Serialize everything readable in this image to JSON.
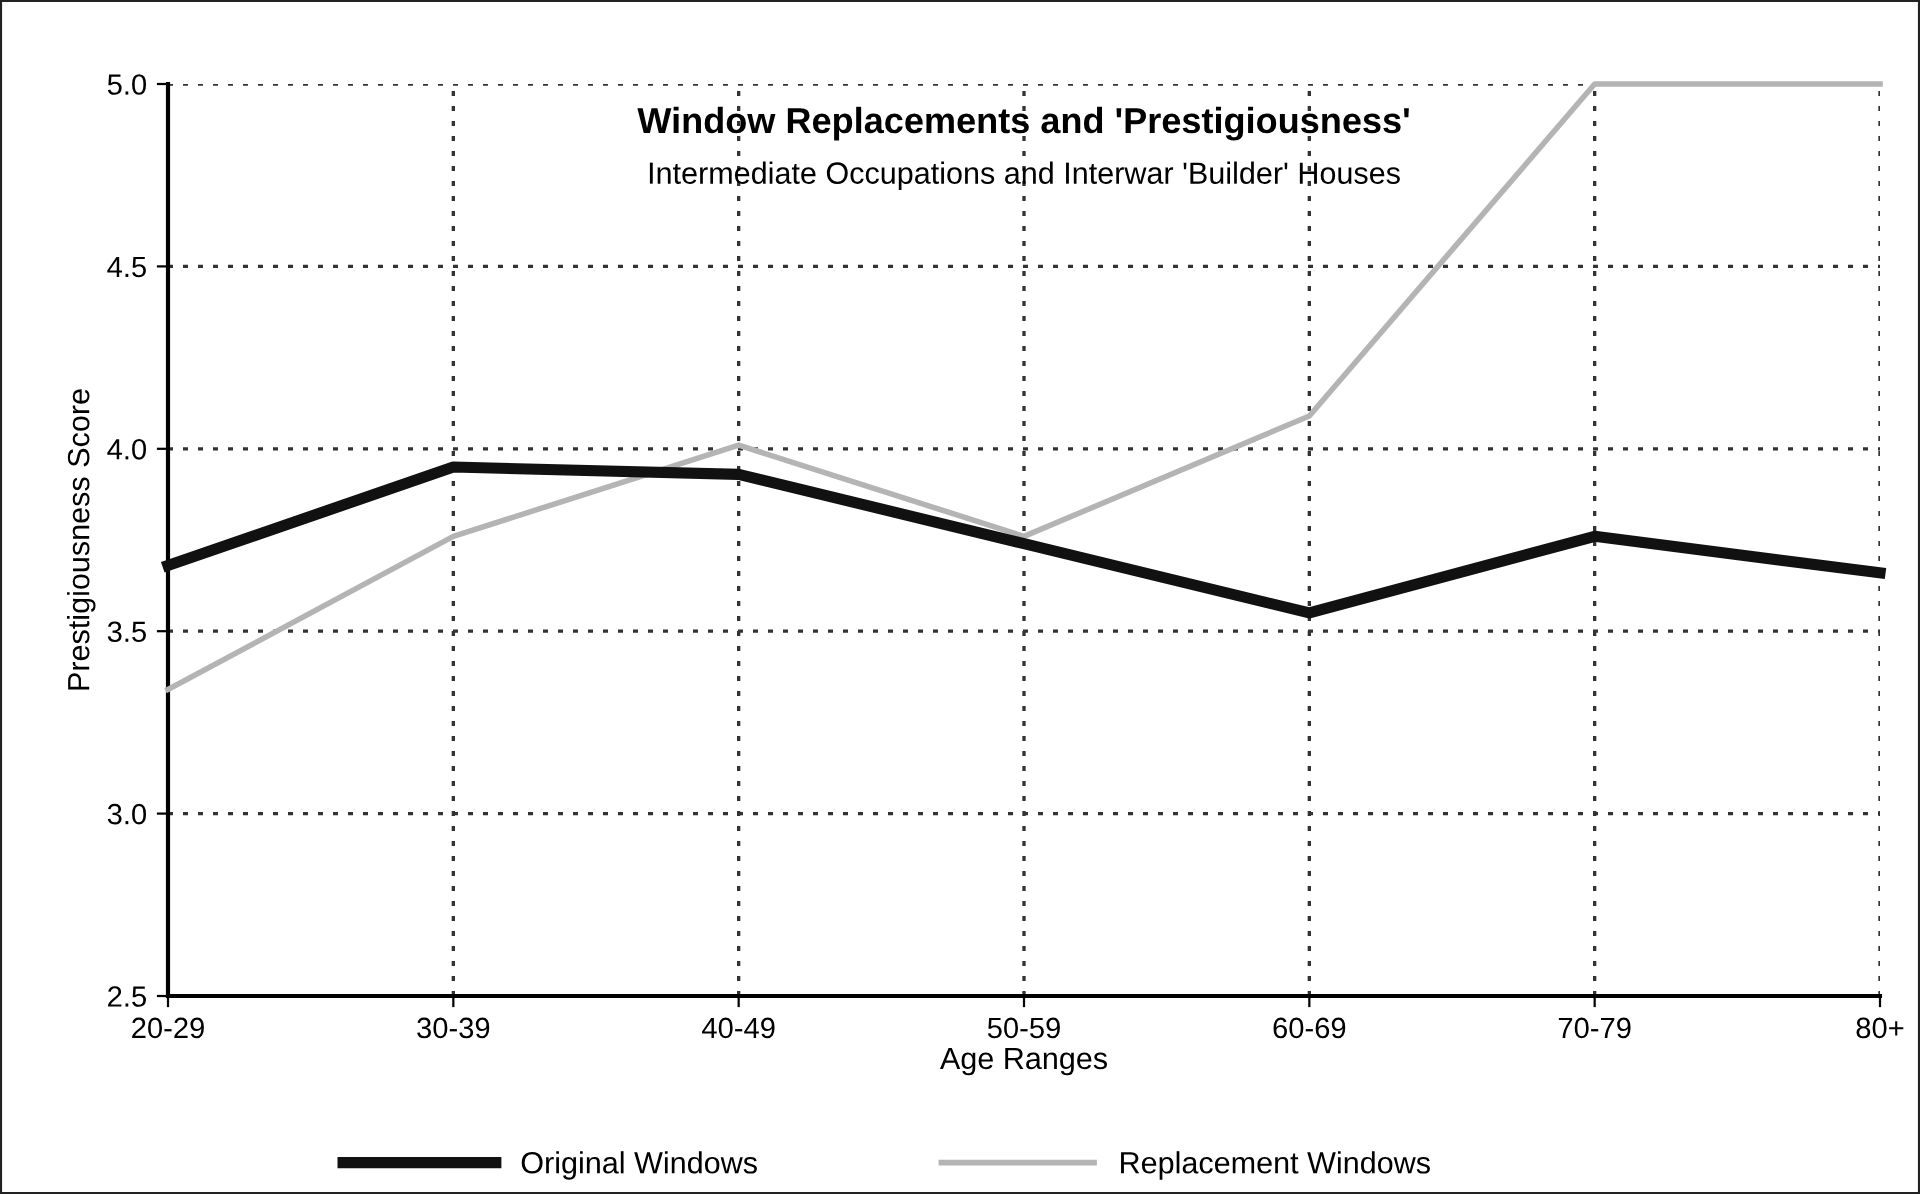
{
  "chart_data": {
    "type": "line",
    "title": "Window Replacements and 'Prestigiousness'",
    "subtitle": "Intermediate Occupations and Interwar 'Builder' Houses",
    "xlabel": "Age Ranges",
    "ylabel": "Prestigiousness Score",
    "categories": [
      "20-29",
      "30-39",
      "40-49",
      "50-59",
      "60-69",
      "70-79",
      "80+"
    ],
    "series": [
      {
        "name": "Original Windows",
        "color": "#111111",
        "values": [
          3.68,
          3.95,
          3.93,
          3.74,
          3.55,
          3.76,
          3.66
        ]
      },
      {
        "name": "Replacement Windows",
        "color": "#b4b4b4",
        "values": [
          3.34,
          3.76,
          4.01,
          3.76,
          4.09,
          5.0,
          5.0
        ]
      }
    ],
    "ylim": [
      2.5,
      5.0
    ],
    "yticks": [
      {
        "value": 2.5,
        "label": "2.5"
      },
      {
        "value": 3.0,
        "label": "3.0"
      },
      {
        "value": 3.5,
        "label": "3.5"
      },
      {
        "value": 4.0,
        "label": "4.0"
      },
      {
        "value": 4.5,
        "label": "4.5"
      },
      {
        "value": 5.0,
        "label": "5.0"
      }
    ],
    "grid": true,
    "legend": "bottom",
    "marker": "none",
    "line_style": "solid"
  }
}
